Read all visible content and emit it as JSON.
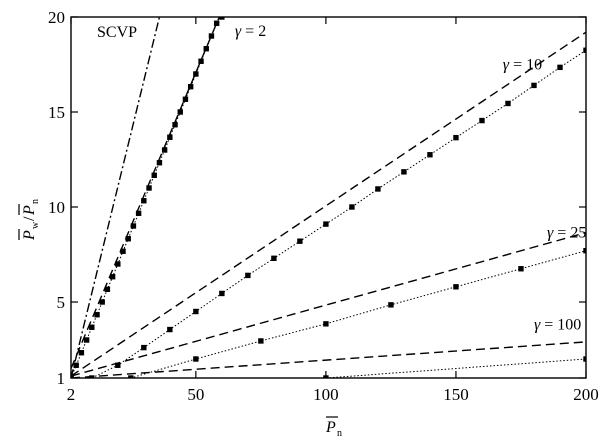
{
  "chart_data": {
    "type": "line",
    "title": "",
    "xlabel": "P̄n",
    "ylabel": "P̄w/P̄n",
    "xlim": [
      2,
      200
    ],
    "ylim": [
      1,
      20
    ],
    "grid": false,
    "legend": "none",
    "x_ticks": [
      2,
      50,
      100,
      150,
      200
    ],
    "y_ticks": [
      1,
      5,
      10,
      15,
      20
    ],
    "axis_labels": {
      "x": {
        "main": "P",
        "sub": "n"
      },
      "y": {
        "main1": "P",
        "sub1": "w",
        "slash": "/",
        "main2": "P",
        "sub2": "n"
      }
    },
    "annotations": [
      {
        "text": "SCVP",
        "italic": false,
        "x": 12,
        "y": 18.95
      },
      {
        "text": "γ = 2",
        "italic": true,
        "x": 65,
        "y": 19.0
      },
      {
        "text": "γ = 10",
        "italic": true,
        "x": 168,
        "y": 17.25
      },
      {
        "text": "γ = 25",
        "italic": true,
        "x": 185,
        "y": 8.4
      },
      {
        "text": "γ = 100",
        "italic": true,
        "x": 180,
        "y": 3.55
      }
    ],
    "series": [
      {
        "style": "dashdot",
        "x": [
          2,
          36
        ],
        "y": [
          1,
          20
        ]
      },
      {
        "style": "dashed",
        "x": [
          2,
          59
        ],
        "y": [
          1.5,
          20
        ]
      },
      {
        "style": "dotted-markers",
        "x": [
          2,
          4,
          6,
          8,
          10,
          12,
          14,
          16,
          18,
          20,
          22,
          24,
          26,
          28,
          30,
          32,
          34,
          36,
          38,
          40,
          42,
          44,
          46,
          48,
          50,
          52,
          54,
          56,
          58,
          60
        ],
        "y": [
          1.0,
          1.67,
          2.33,
          3.0,
          3.67,
          4.33,
          5.0,
          5.67,
          6.33,
          7.0,
          7.67,
          8.33,
          9.0,
          9.67,
          10.33,
          11.0,
          11.67,
          12.33,
          13.0,
          13.67,
          14.33,
          15.0,
          15.67,
          16.33,
          17.0,
          17.67,
          18.33,
          19.0,
          19.67,
          20.0
        ]
      },
      {
        "style": "dashed",
        "x": [
          2,
          200
        ],
        "y": [
          1.1,
          19.2
        ]
      },
      {
        "style": "dotted-markers",
        "x": [
          2,
          10,
          20,
          30,
          40,
          50,
          60,
          70,
          80,
          90,
          100,
          110,
          120,
          130,
          140,
          150,
          160,
          170,
          180,
          190,
          200
        ],
        "y": [
          1.0,
          1.0,
          1.67,
          2.6,
          3.55,
          4.5,
          5.45,
          6.4,
          7.3,
          8.2,
          9.1,
          10.0,
          10.95,
          11.85,
          12.75,
          13.65,
          14.55,
          15.45,
          16.4,
          17.35,
          18.25
        ]
      },
      {
        "style": "dashed",
        "x": [
          2,
          200
        ],
        "y": [
          1.1,
          8.65
        ]
      },
      {
        "style": "dotted-markers",
        "x": [
          2,
          25,
          50,
          75,
          100,
          125,
          150,
          175,
          200
        ],
        "y": [
          1.0,
          1.0,
          2.0,
          2.95,
          3.85,
          4.85,
          5.8,
          6.75,
          7.7
        ]
      },
      {
        "style": "dashed",
        "x": [
          2,
          200
        ],
        "y": [
          1.0,
          2.9
        ]
      },
      {
        "style": "dotted-markers",
        "x": [
          100,
          200
        ],
        "y": [
          1.0,
          2.0
        ]
      }
    ]
  }
}
